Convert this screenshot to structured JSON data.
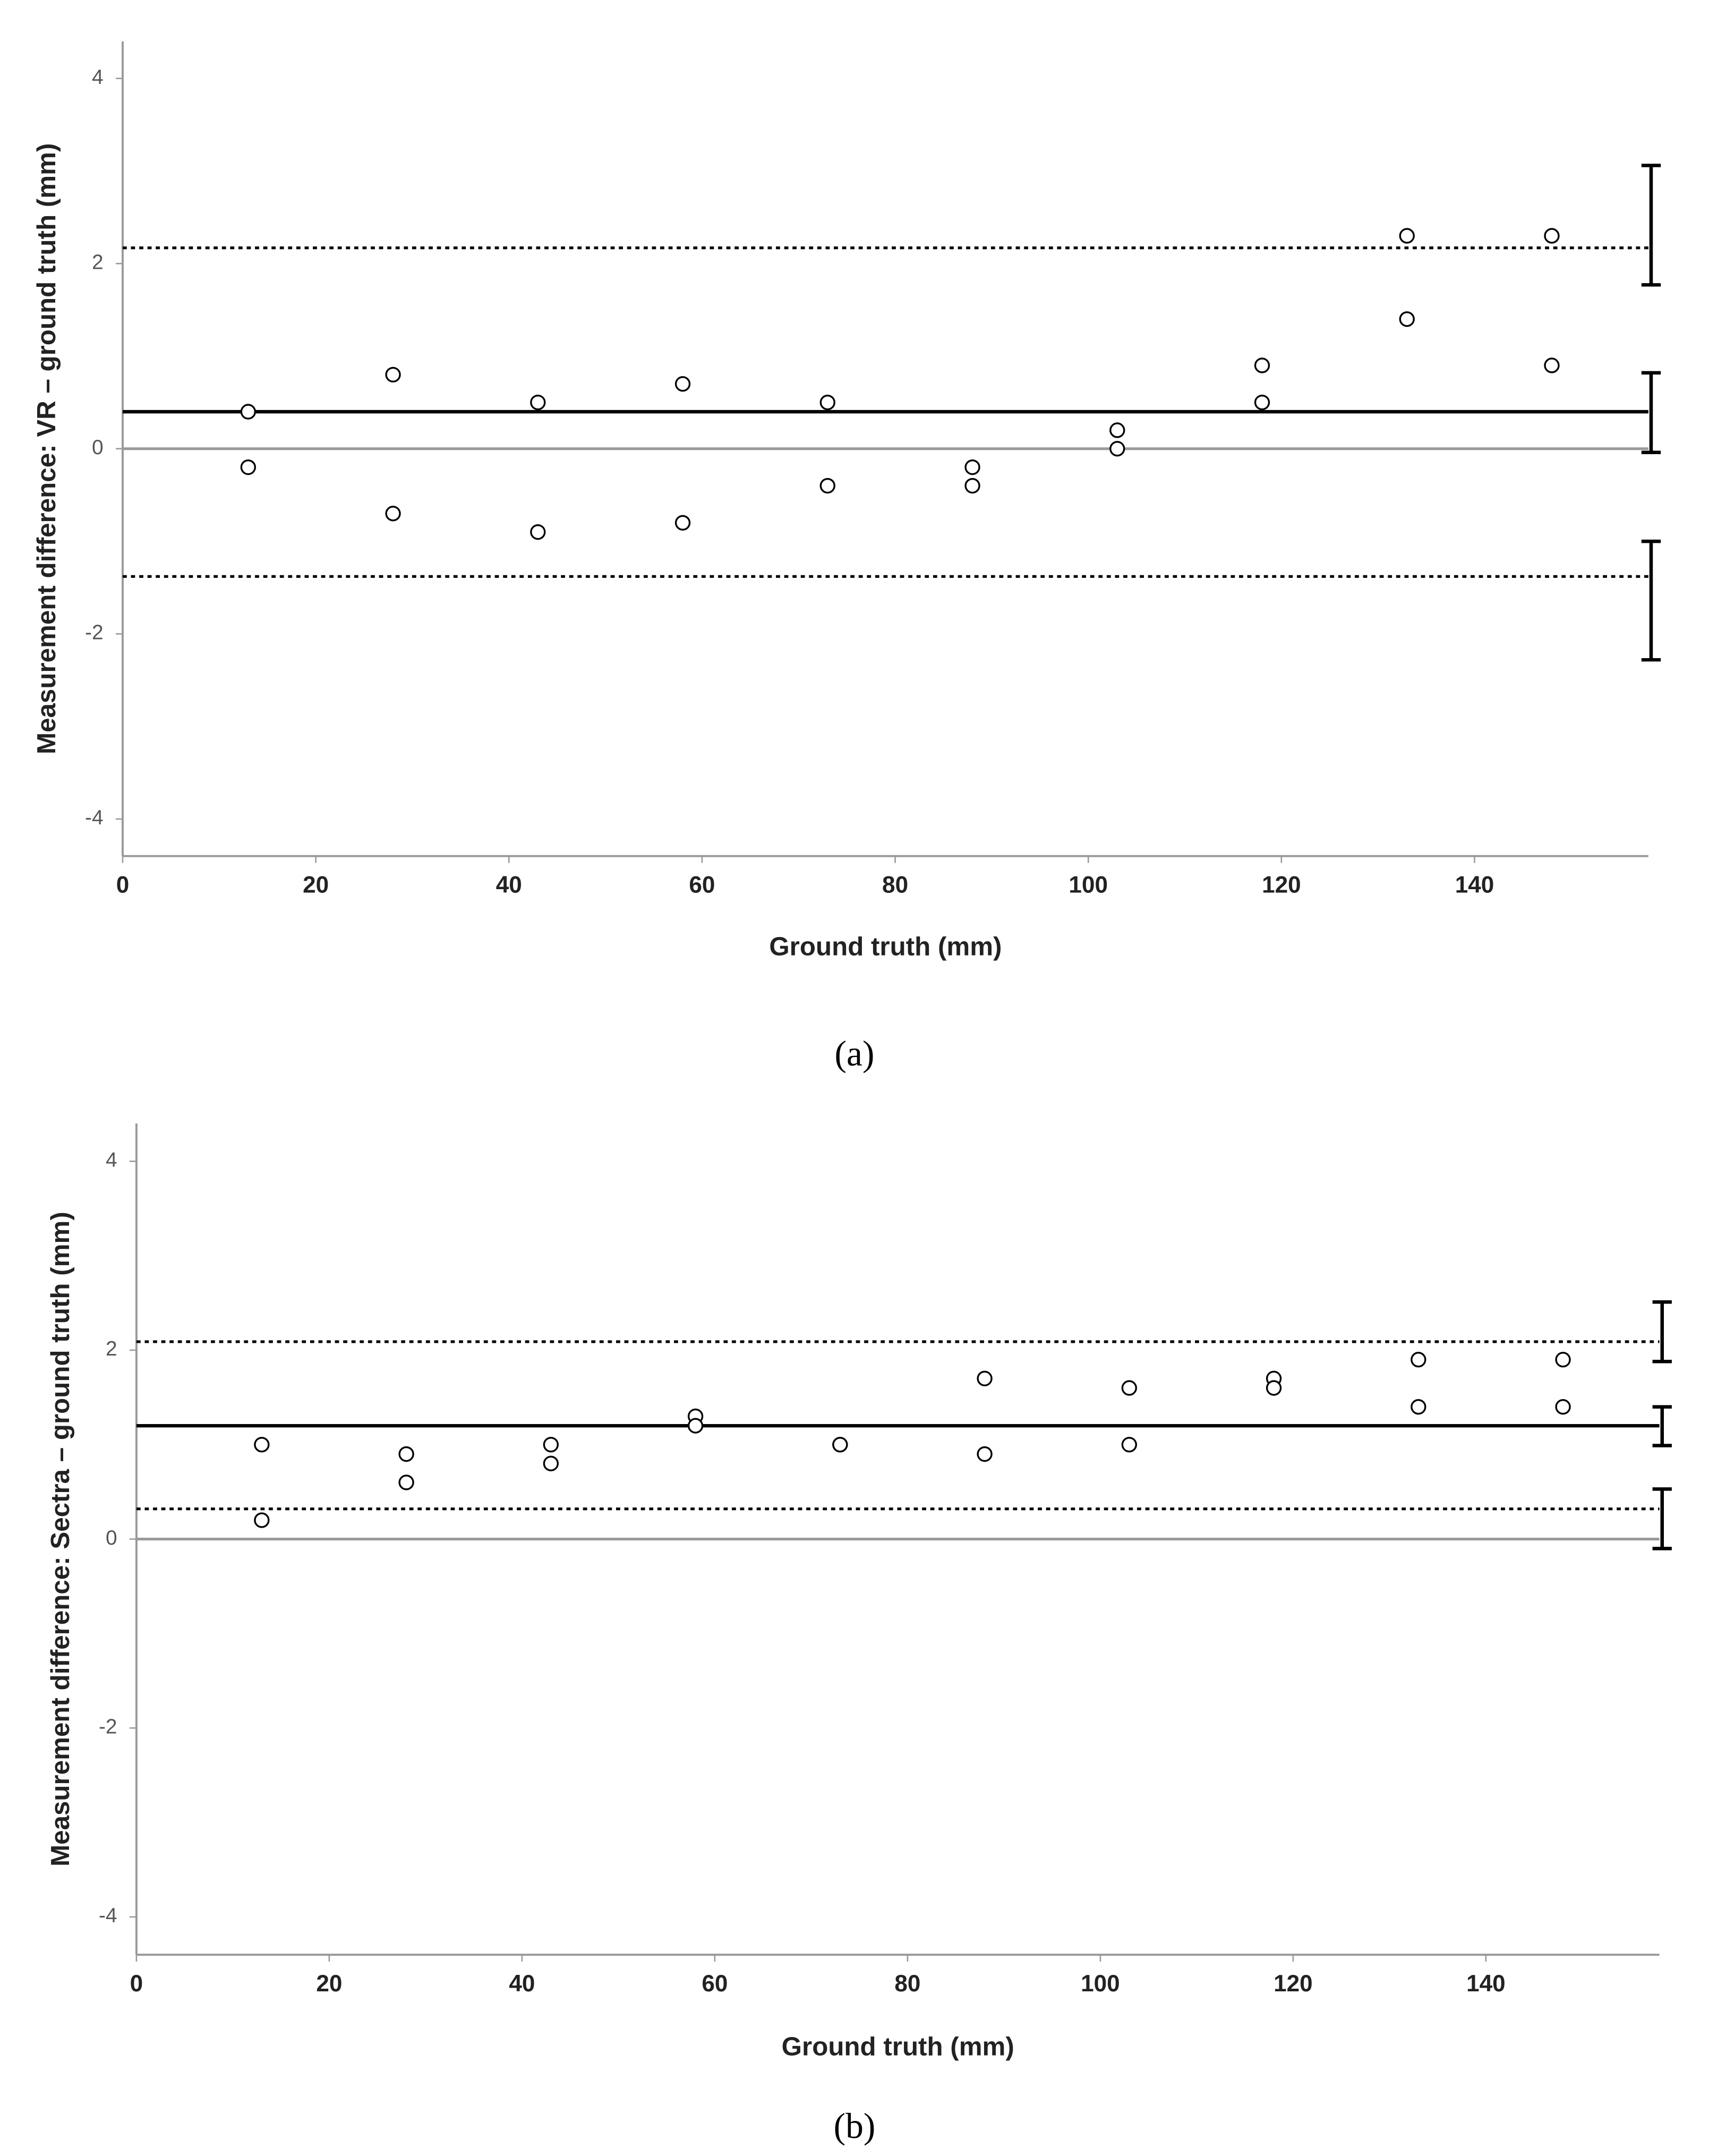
{
  "chart_data": [
    {
      "type": "scatter",
      "y_label": "Measurement difference: VR – ground truth (mm)",
      "x_label": "Ground truth (mm)",
      "caption": "(a)",
      "x": [
        13,
        13,
        28,
        28,
        43,
        43,
        58,
        58,
        73,
        73,
        88,
        88,
        103,
        103,
        118,
        118,
        133,
        133,
        148,
        148
      ],
      "values": [
        0.4,
        -0.2,
        0.8,
        -0.7,
        0.5,
        -0.9,
        0.7,
        -0.8,
        0.5,
        -0.4,
        -0.2,
        -0.4,
        0.2,
        0.0,
        0.9,
        0.5,
        2.3,
        1.4,
        2.3,
        0.9
      ],
      "mean": 0.4,
      "upper_loa": 2.17,
      "lower_loa": -1.38,
      "zero_line": 0,
      "mean_ci": [
        0.82,
        -0.04
      ],
      "upper_loa_ci": [
        3.06,
        1.77
      ],
      "lower_loa_ci": [
        -1.0,
        -2.28
      ],
      "xlim": [
        0,
        158
      ],
      "ylim": [
        -4.4,
        4.4
      ],
      "xticks": [
        0,
        20,
        40,
        60,
        80,
        100,
        120,
        140
      ],
      "yticks": [
        -4,
        -2,
        0,
        2,
        4
      ]
    },
    {
      "type": "scatter",
      "y_label": "Measurement difference: Sectra – ground truth (mm)",
      "x_label": "Ground truth (mm)",
      "caption": "(b)",
      "x": [
        13,
        13,
        28,
        28,
        43,
        43,
        58,
        58,
        73,
        73,
        88,
        88,
        103,
        103,
        118,
        118,
        133,
        133,
        148,
        148
      ],
      "values": [
        1.0,
        0.2,
        0.9,
        0.6,
        1.0,
        0.8,
        1.3,
        1.2,
        1.0,
        1.0,
        1.7,
        0.9,
        1.6,
        1.0,
        1.7,
        1.6,
        1.9,
        1.4,
        1.9,
        1.4
      ],
      "mean": 1.2,
      "upper_loa": 2.09,
      "lower_loa": 0.32,
      "zero_line": 0,
      "mean_ci": [
        1.4,
        0.99
      ],
      "upper_loa_ci": [
        2.51,
        1.88
      ],
      "lower_loa_ci": [
        0.53,
        -0.1
      ],
      "xlim": [
        0,
        158
      ],
      "ylim": [
        -4.4,
        4.4
      ],
      "xticks": [
        0,
        20,
        40,
        60,
        80,
        100,
        120,
        140
      ],
      "yticks": [
        -4,
        -2,
        0,
        2,
        4
      ]
    }
  ]
}
